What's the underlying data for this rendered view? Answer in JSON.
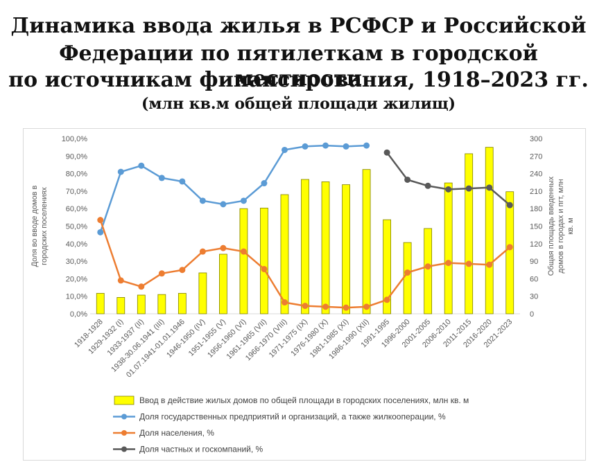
{
  "header": {
    "title_line1": "Динамика ввода жилья в РСФСР и Российской",
    "title_line2": "Федерации по пятилеткам в городской местности",
    "title_line3": "по источникам финансирования, 1918–2023 гг.",
    "subtitle": "(млн кв.м общей площади жилищ)"
  },
  "chart_data": {
    "type": "bar",
    "categories": [
      "1918-1928",
      "1929-1932 (I)",
      "1933-1937 (II)",
      "1938-30.06.1941 (III)",
      "01.07.1941-01.01.1946",
      "1946-1950 (IV)",
      "1951-1955 (V)",
      "1956-1960 (VI)",
      "1961-1965 (VII)",
      "1966-1970 (VIII)",
      "1971-1975 (IX)",
      "1976-1980 (X)",
      "1981-1985 (XI)",
      "1986-1990 (XII)",
      "1991-1995",
      "1996-2000",
      "2001-2005",
      "2006-2010",
      "2011-2015",
      "2016-2020",
      "2021-2023"
    ],
    "y_left": {
      "label": "Доля во вводе домов в городских поселениях",
      "ticks": [
        "0,0%",
        "10,0%",
        "20,0%",
        "30,0%",
        "40,0%",
        "50,0%",
        "60,0%",
        "70,0%",
        "80,0%",
        "90,0%",
        "100,0%"
      ],
      "ylim": [
        0,
        100
      ]
    },
    "y_right": {
      "label": "Общая площадь введенных домов в городах и пгт, млн кв. м",
      "ticks": [
        "0",
        "30",
        "60",
        "90",
        "120",
        "150",
        "180",
        "210",
        "240",
        "270",
        "300"
      ],
      "ylim": [
        0,
        300
      ]
    },
    "series": [
      {
        "name": "Ввод в действие жилых домов по общей площади в городских поселениях, млн кв. м",
        "type": "bar",
        "axis": "right",
        "color": "#ffff00",
        "values": [
          35,
          28,
          32,
          33,
          35,
          70,
          102,
          180,
          181,
          204,
          230,
          226,
          221,
          247,
          161,
          122,
          146,
          224,
          274,
          285,
          209
        ]
      },
      {
        "name": "Доля государственных предприятий и организаций, а также жилкооперации, %",
        "type": "line",
        "axis": "left",
        "color": "#5b9bd5",
        "values": [
          46.5,
          81.0,
          84.5,
          77.5,
          75.5,
          64.5,
          62.5,
          64.5,
          74.5,
          93.5,
          95.5,
          96.0,
          95.5,
          96.0,
          null,
          null,
          null,
          null,
          null,
          null,
          null
        ]
      },
      {
        "name": "Доля населения, %",
        "type": "line",
        "axis": "left",
        "color": "#ed7d31",
        "values": [
          53.5,
          19.0,
          15.5,
          23.0,
          25.0,
          35.5,
          37.5,
          35.5,
          25.5,
          6.5,
          4.5,
          4.0,
          3.5,
          4.0,
          8.0,
          23.5,
          27.0,
          29.0,
          28.5,
          28.0,
          38.0
        ]
      },
      {
        "name": "Доля частных и госкомпаний, %",
        "type": "line",
        "axis": "left",
        "color": "#595959",
        "values": [
          null,
          null,
          null,
          null,
          null,
          null,
          null,
          null,
          null,
          null,
          null,
          null,
          null,
          null,
          92.0,
          76.5,
          73.0,
          71.0,
          71.5,
          72.0,
          62.0
        ]
      }
    ],
    "grid": false,
    "legend_position": "bottom"
  }
}
